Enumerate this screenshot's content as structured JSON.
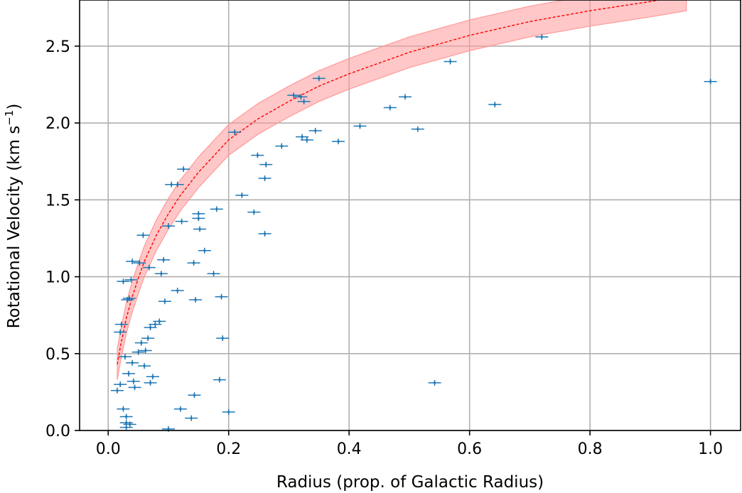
{
  "chart_data": {
    "type": "scatter",
    "xlabel": "Radius (prop. of Galactic Radius)",
    "ylabel": "Rotational Velocity (km s⁻¹)",
    "ylabel_main": "Rotational Velocity (km s",
    "ylabel_sup": "−1",
    "ylabel_close": ")",
    "xlim": [
      -0.0475,
      1.05
    ],
    "ylim": [
      0,
      2.8
    ],
    "xticks": [
      0.0,
      0.2,
      0.4,
      0.6,
      0.8,
      1.0
    ],
    "xtick_labels": [
      "0.0",
      "0.2",
      "0.4",
      "0.6",
      "0.8",
      "1.0"
    ],
    "yticks": [
      0.0,
      0.5,
      1.0,
      1.5,
      2.0,
      2.5
    ],
    "ytick_labels": [
      "0.0",
      "0.5",
      "1.0",
      "1.5",
      "2.0",
      "2.5"
    ],
    "grid": true,
    "colors": {
      "points": "#1f77b4",
      "fit_line": "#ff0000",
      "band": "#ff9999"
    },
    "fit": {
      "style": "dashed",
      "x": [
        0.015,
        0.02,
        0.03,
        0.04,
        0.05,
        0.06,
        0.08,
        0.1,
        0.12,
        0.15,
        0.2,
        0.25,
        0.3,
        0.35,
        0.4,
        0.5,
        0.6,
        0.7,
        0.8,
        0.9,
        0.96
      ],
      "y": [
        0.43,
        0.54,
        0.73,
        0.87,
        0.99,
        1.1,
        1.27,
        1.41,
        1.53,
        1.68,
        1.89,
        2.03,
        2.14,
        2.24,
        2.32,
        2.46,
        2.57,
        2.66,
        2.73,
        2.79,
        2.83
      ],
      "lower": [
        0.33,
        0.44,
        0.63,
        0.77,
        0.89,
        1.0,
        1.17,
        1.31,
        1.43,
        1.58,
        1.79,
        1.93,
        2.04,
        2.14,
        2.22,
        2.36,
        2.47,
        2.56,
        2.63,
        2.69,
        2.73
      ],
      "upper": [
        0.53,
        0.64,
        0.83,
        0.97,
        1.09,
        1.2,
        1.37,
        1.51,
        1.63,
        1.78,
        1.99,
        2.13,
        2.24,
        2.34,
        2.42,
        2.56,
        2.67,
        2.76,
        2.83,
        2.89,
        2.93
      ]
    },
    "points": [
      {
        "x": 0.015,
        "y": 0.26
      },
      {
        "x": 0.02,
        "y": 0.3
      },
      {
        "x": 0.02,
        "y": 0.64
      },
      {
        "x": 0.022,
        "y": 0.69
      },
      {
        "x": 0.025,
        "y": 0.14
      },
      {
        "x": 0.025,
        "y": 0.97
      },
      {
        "x": 0.028,
        "y": 0.48
      },
      {
        "x": 0.03,
        "y": 0.09
      },
      {
        "x": 0.03,
        "y": 0.05
      },
      {
        "x": 0.03,
        "y": 0.02
      },
      {
        "x": 0.032,
        "y": 0.85
      },
      {
        "x": 0.034,
        "y": 0.37
      },
      {
        "x": 0.035,
        "y": 0.86
      },
      {
        "x": 0.036,
        "y": 0.04
      },
      {
        "x": 0.038,
        "y": 0.98
      },
      {
        "x": 0.04,
        "y": 0.44
      },
      {
        "x": 0.04,
        "y": 1.1
      },
      {
        "x": 0.042,
        "y": 0.32
      },
      {
        "x": 0.044,
        "y": 0.28
      },
      {
        "x": 0.05,
        "y": 0.51
      },
      {
        "x": 0.052,
        "y": 1.09
      },
      {
        "x": 0.055,
        "y": 0.57
      },
      {
        "x": 0.058,
        "y": 1.27
      },
      {
        "x": 0.06,
        "y": 0.42
      },
      {
        "x": 0.062,
        "y": 0.52
      },
      {
        "x": 0.066,
        "y": 0.6
      },
      {
        "x": 0.068,
        "y": 1.06
      },
      {
        "x": 0.07,
        "y": 0.67
      },
      {
        "x": 0.07,
        "y": 0.31
      },
      {
        "x": 0.074,
        "y": 0.35
      },
      {
        "x": 0.078,
        "y": 0.69
      },
      {
        "x": 0.085,
        "y": 0.71
      },
      {
        "x": 0.088,
        "y": 1.02
      },
      {
        "x": 0.092,
        "y": 1.11
      },
      {
        "x": 0.094,
        "y": 0.84
      },
      {
        "x": 0.1,
        "y": 0.01
      },
      {
        "x": 0.1,
        "y": 1.33
      },
      {
        "x": 0.105,
        "y": 1.6
      },
      {
        "x": 0.115,
        "y": 1.6
      },
      {
        "x": 0.115,
        "y": 0.91
      },
      {
        "x": 0.12,
        "y": 0.14
      },
      {
        "x": 0.122,
        "y": 1.36
      },
      {
        "x": 0.125,
        "y": 1.7
      },
      {
        "x": 0.138,
        "y": 0.08
      },
      {
        "x": 0.142,
        "y": 1.09
      },
      {
        "x": 0.143,
        "y": 0.23
      },
      {
        "x": 0.145,
        "y": 0.85
      },
      {
        "x": 0.15,
        "y": 1.41
      },
      {
        "x": 0.15,
        "y": 1.38
      },
      {
        "x": 0.152,
        "y": 1.31
      },
      {
        "x": 0.16,
        "y": 1.17
      },
      {
        "x": 0.175,
        "y": 1.02
      },
      {
        "x": 0.18,
        "y": 1.44
      },
      {
        "x": 0.185,
        "y": 0.33
      },
      {
        "x": 0.188,
        "y": 0.87
      },
      {
        "x": 0.19,
        "y": 0.6
      },
      {
        "x": 0.2,
        "y": 0.12
      },
      {
        "x": 0.21,
        "y": 1.94
      },
      {
        "x": 0.222,
        "y": 1.53
      },
      {
        "x": 0.242,
        "y": 1.42
      },
      {
        "x": 0.248,
        "y": 1.79
      },
      {
        "x": 0.26,
        "y": 1.64
      },
      {
        "x": 0.262,
        "y": 1.73
      },
      {
        "x": 0.26,
        "y": 1.28
      },
      {
        "x": 0.288,
        "y": 1.85
      },
      {
        "x": 0.308,
        "y": 2.18
      },
      {
        "x": 0.32,
        "y": 2.17
      },
      {
        "x": 0.322,
        "y": 1.91
      },
      {
        "x": 0.325,
        "y": 2.14
      },
      {
        "x": 0.33,
        "y": 1.89
      },
      {
        "x": 0.344,
        "y": 1.95
      },
      {
        "x": 0.35,
        "y": 2.29
      },
      {
        "x": 0.382,
        "y": 1.88
      },
      {
        "x": 0.418,
        "y": 1.98
      },
      {
        "x": 0.468,
        "y": 2.1
      },
      {
        "x": 0.493,
        "y": 2.17
      },
      {
        "x": 0.514,
        "y": 1.96
      },
      {
        "x": 0.542,
        "y": 0.31
      },
      {
        "x": 0.568,
        "y": 2.4
      },
      {
        "x": 0.642,
        "y": 2.12
      },
      {
        "x": 0.72,
        "y": 2.56
      },
      {
        "x": 1.0,
        "y": 2.27
      }
    ]
  }
}
